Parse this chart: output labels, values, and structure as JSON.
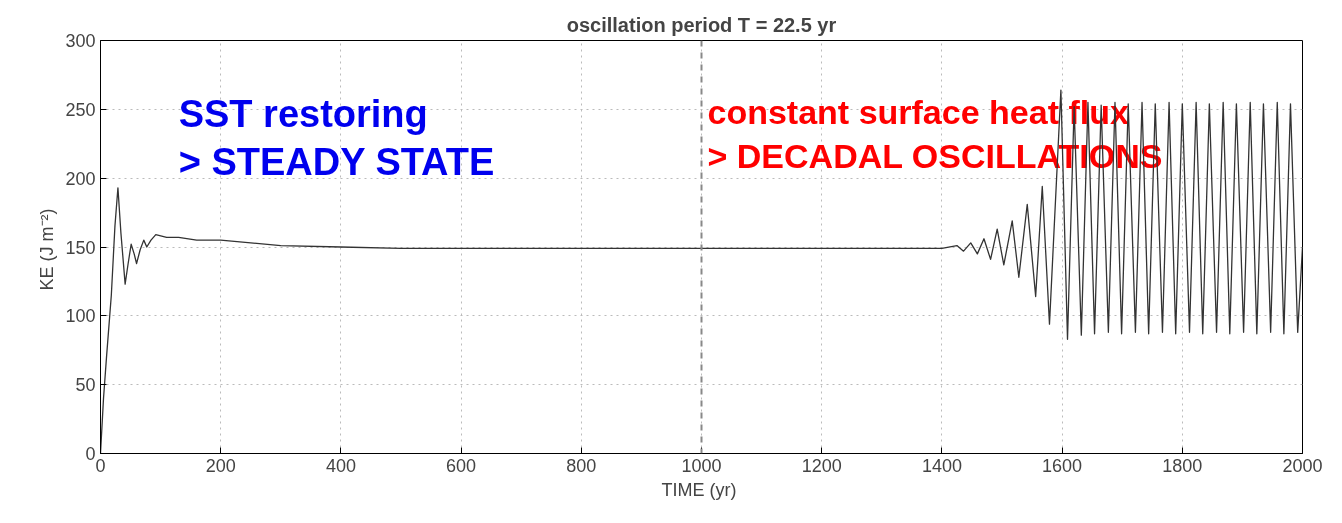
{
  "chart_data": {
    "type": "line",
    "title": "oscillation period T = 22.5 yr",
    "xlabel": "TIME  (yr)",
    "ylabel": "KE  (J m⁻²)",
    "annotations": [
      "SST restoring\n> STEADY STATE",
      "constant surface heat flux\n> DECADAL OSCILLATIONS"
    ],
    "series": [
      {
        "color": "#333333",
        "x": [
          0,
          5,
          10,
          18,
          24,
          29,
          34,
          41,
          46,
          51,
          56,
          60,
          66,
          72,
          77,
          84,
          92,
          110,
          130,
          160,
          200,
          250,
          300,
          400,
          500,
          700,
          900,
          1100,
          1300,
          1400,
          1425,
          1436,
          1448,
          1459,
          1470,
          1481,
          1492,
          1503,
          1517,
          1528,
          1542,
          1556,
          1567,
          1579,
          1598,
          1609,
          1620,
          1632,
          1643,
          1654,
          1665,
          1677,
          1688,
          1699,
          1710,
          1722,
          1733,
          1744,
          1755,
          1767,
          1778,
          1789,
          1800,
          1812,
          1823,
          1834,
          1845,
          1857,
          1868,
          1879,
          1890,
          1902,
          1913,
          1924,
          1935,
          1947,
          1958,
          1969,
          1980,
          1992,
          2000
        ],
        "values": [
          0,
          40,
          70,
          115,
          165,
          193,
          160,
          123,
          138,
          152,
          145,
          138,
          148,
          155,
          150,
          155,
          159,
          157,
          157,
          155,
          155,
          153,
          151,
          150,
          149,
          149,
          149,
          149,
          149,
          149,
          151,
          147,
          153,
          145,
          156,
          141,
          163,
          137,
          169,
          128,
          181,
          114,
          194,
          94,
          264,
          83,
          252,
          86,
          255,
          87,
          253,
          88,
          255,
          87,
          254,
          88,
          255,
          87,
          254,
          88,
          255,
          87,
          254,
          88,
          255,
          87,
          254,
          88,
          255,
          87,
          254,
          88,
          255,
          87,
          254,
          88,
          255,
          87,
          254,
          88,
          150
        ]
      }
    ],
    "xlim": [
      0,
      2000
    ],
    "xticks": [
      0,
      200,
      400,
      600,
      800,
      1000,
      1200,
      1400,
      1600,
      1800,
      2000
    ],
    "ylim": [
      0,
      300
    ],
    "yticks": [
      0,
      50,
      100,
      150,
      200,
      250,
      300
    ],
    "ref_lines": [
      {
        "axis": "x",
        "value": 1000,
        "line_style": "dashed",
        "color": "#888888"
      }
    ],
    "grid": true,
    "marker": "none",
    "line_style": "solid"
  }
}
